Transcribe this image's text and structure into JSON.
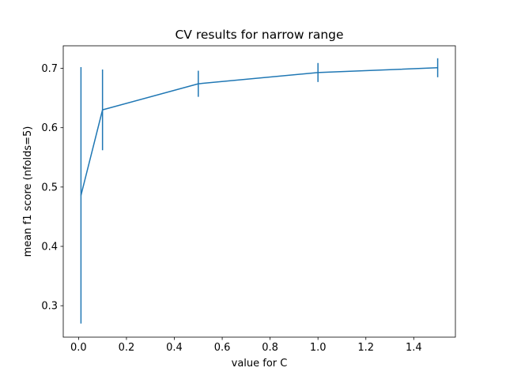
{
  "chart_data": {
    "type": "line",
    "title": "CV results for narrow range",
    "xlabel": "value for C",
    "ylabel": "mean f1 score (nfolds=5)",
    "xlim": [
      -0.064,
      1.574
    ],
    "ylim": [
      0.247,
      0.738
    ],
    "xticks": [
      0.0,
      0.2,
      0.4,
      0.6,
      0.8,
      1.0,
      1.2,
      1.4
    ],
    "xtick_labels": [
      "0.0",
      "0.2",
      "0.4",
      "0.6",
      "0.8",
      "1.0",
      "1.2",
      "1.4"
    ],
    "yticks": [
      0.3,
      0.4,
      0.5,
      0.6,
      0.7
    ],
    "ytick_labels": [
      "0.3",
      "0.4",
      "0.5",
      "0.6",
      "0.7"
    ],
    "grid": false,
    "series": [
      {
        "x": [
          0.01,
          0.1,
          0.5,
          1.0,
          1.5
        ],
        "y": [
          0.486,
          0.63,
          0.674,
          0.693,
          0.701
        ],
        "yerr": [
          0.216,
          0.068,
          0.022,
          0.016,
          0.016
        ],
        "color": "#1f77b4"
      }
    ]
  }
}
